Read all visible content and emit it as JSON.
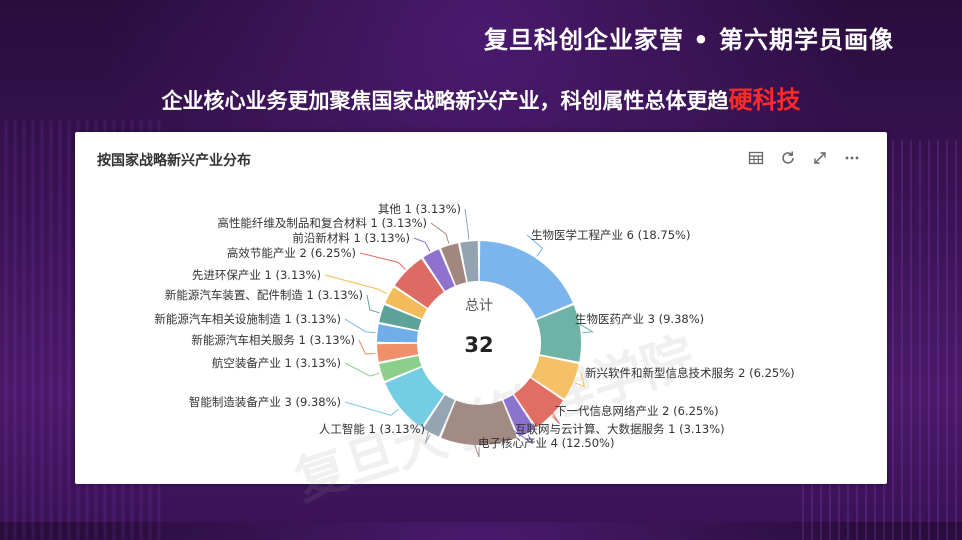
{
  "header": {
    "title": "复旦科创企业家营 • 第六期学员画像"
  },
  "subtitle": {
    "prefix": "企业核心业务更加聚焦国家战略新兴产业，科创属性总体更趋",
    "highlight": "硬科技"
  },
  "card": {
    "title": "按国家战略新兴产业分布",
    "tools": [
      "table-icon",
      "refresh-icon",
      "expand-icon",
      "more-icon"
    ]
  },
  "watermark": "复旦大学管理学院",
  "chart_data": {
    "type": "pie",
    "center_label": "总计",
    "total": 32,
    "slices": [
      {
        "name": "生物医学工程产业",
        "value": 6,
        "percent": "18.75%",
        "label": "生物医学工程产业 6 (18.75%)",
        "color": "#7cb5ec"
      },
      {
        "name": "生物医药产业",
        "value": 3,
        "percent": "9.38%",
        "label": "生物医药产业 3 (9.38%)",
        "color": "#6fb3a7"
      },
      {
        "name": "新兴软件和新型信息技术服务",
        "value": 2,
        "percent": "6.25%",
        "label": "新兴软件和新型信息技术服务 2 (6.25%)",
        "color": "#f5c066"
      },
      {
        "name": "下一代信息网络产业",
        "value": 2,
        "percent": "6.25%",
        "label": "下一代信息网络产业 2 (6.25%)",
        "color": "#e16e63"
      },
      {
        "name": "互联网与云计算、大数据服务",
        "value": 1,
        "percent": "3.13%",
        "label": "互联网与云计算、大数据服务 1 (3.13%)",
        "color": "#8b74d0"
      },
      {
        "name": "电子核心产业",
        "value": 4,
        "percent": "12.50%",
        "label": "电子核心产业 4 (12.50%)",
        "color": "#a28b82"
      },
      {
        "name": "人工智能",
        "value": 1,
        "percent": "3.13%",
        "label": "人工智能 1 (3.13%)",
        "color": "#95a5b3"
      },
      {
        "name": "智能制造装备产业",
        "value": 3,
        "percent": "9.38%",
        "label": "智能制造装备产业 3 (9.38%)",
        "color": "#74cde2"
      },
      {
        "name": "航空装备产业",
        "value": 1,
        "percent": "3.13%",
        "label": "航空装备产业 1 (3.13%)",
        "color": "#8ccf8a"
      },
      {
        "name": "新能源汽车相关服务",
        "value": 1,
        "percent": "3.13%",
        "label": "新能源汽车相关服务 1 (3.13%)",
        "color": "#f0906a"
      },
      {
        "name": "新能源汽车相关设施制造",
        "value": 1,
        "percent": "3.13%",
        "label": "新能源汽车相关设施制造 1 (3.13%)",
        "color": "#6faee8"
      },
      {
        "name": "新能源汽车装置、配件制造",
        "value": 1,
        "percent": "3.13%",
        "label": "新能源汽车装置、配件制造 1 (3.13%)",
        "color": "#5da39a"
      },
      {
        "name": "先进环保产业",
        "value": 1,
        "percent": "3.13%",
        "label": "先进环保产业 1 (3.13%)",
        "color": "#f3bb5a"
      },
      {
        "name": "高效节能产业",
        "value": 2,
        "percent": "6.25%",
        "label": "高效节能产业 2 (6.25%)",
        "color": "#dd6a63"
      },
      {
        "name": "前沿新材料",
        "value": 1,
        "percent": "3.13%",
        "label": "前沿新材料 1 (3.13%)",
        "color": "#8f72cf"
      },
      {
        "name": "高性能纤维及制品和复合材料",
        "value": 1,
        "percent": "3.13%",
        "label": "高性能纤维及制品和复合材料 1 (3.13%)",
        "color": "#a2877e"
      },
      {
        "name": "其他",
        "value": 1,
        "percent": "3.13%",
        "label": "其他 1 (3.13%)",
        "color": "#93a3b1"
      }
    ]
  }
}
